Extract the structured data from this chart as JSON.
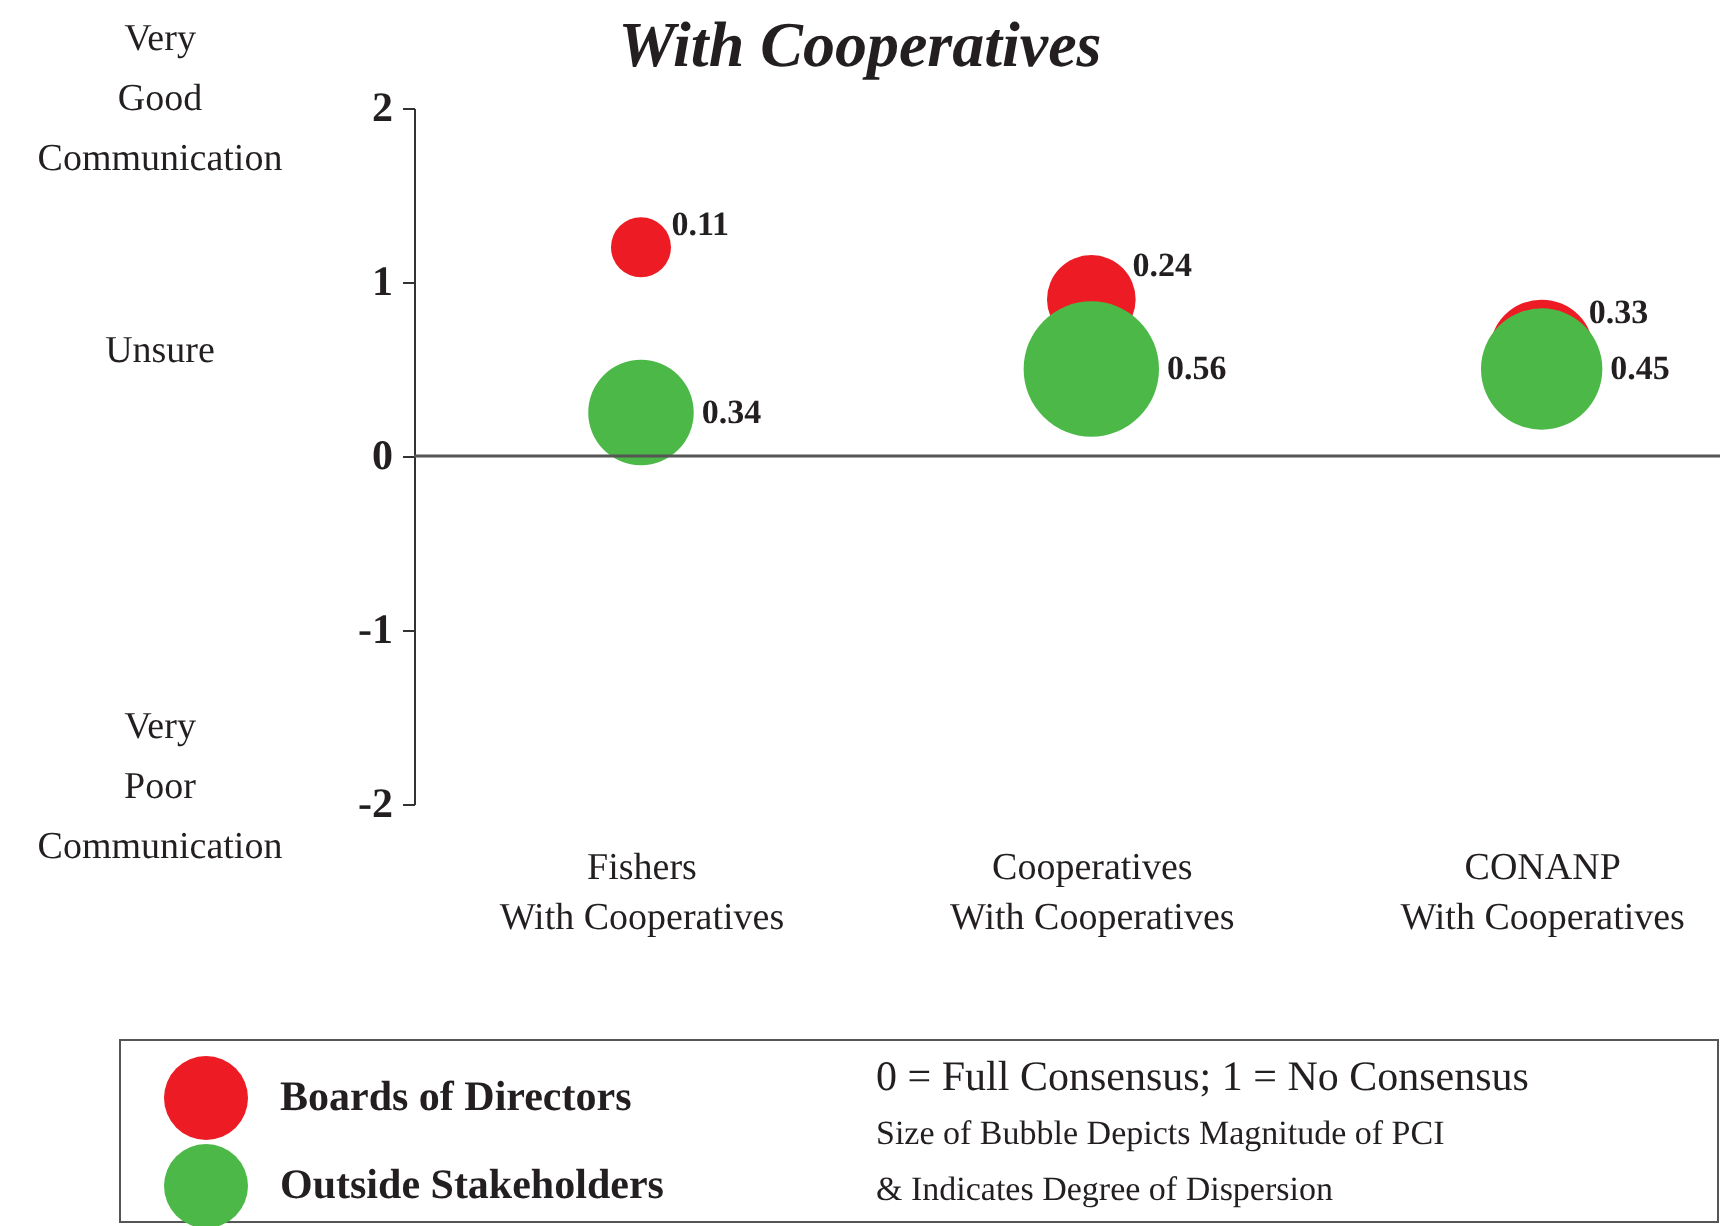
{
  "chart_data": {
    "type": "bubble",
    "title": "With Cooperatives",
    "categories": [
      "Fishers\nWith Cooperatives",
      "Cooperatives\nWith Cooperatives",
      "CONANP\nWith Cooperatives"
    ],
    "series": [
      {
        "name": "Boards of Directors",
        "color": "#ed1c24",
        "values": [
          1.2,
          0.9,
          0.6
        ],
        "sizes": [
          0.11,
          0.24,
          0.33
        ],
        "value_labels": [
          "0.11",
          "0.24",
          "0.33"
        ]
      },
      {
        "name": "Outside Stakeholders",
        "color": "#4cb848",
        "values": [
          0.25,
          0.5,
          0.5
        ],
        "sizes": [
          0.34,
          0.56,
          0.45
        ],
        "value_labels": [
          "0.34",
          "0.56",
          "0.45"
        ]
      }
    ],
    "ylim": [
      -2,
      2
    ],
    "yticks": [
      -2,
      -1,
      0,
      1,
      2
    ],
    "ref_lines": [
      {
        "axis": "y",
        "value": 0,
        "color": "#555555"
      }
    ],
    "marker": "circle",
    "legend": "bottom",
    "annotations": [
      "Very\nGood\nCommunication",
      "Unsure",
      "Very\nPoor\nCommunication",
      "0 = Full Consensus; 1 = No Consensus",
      "Size of Bubble Depicts Magnitude of PCI\n& Indicates Degree of Dispersion"
    ]
  }
}
